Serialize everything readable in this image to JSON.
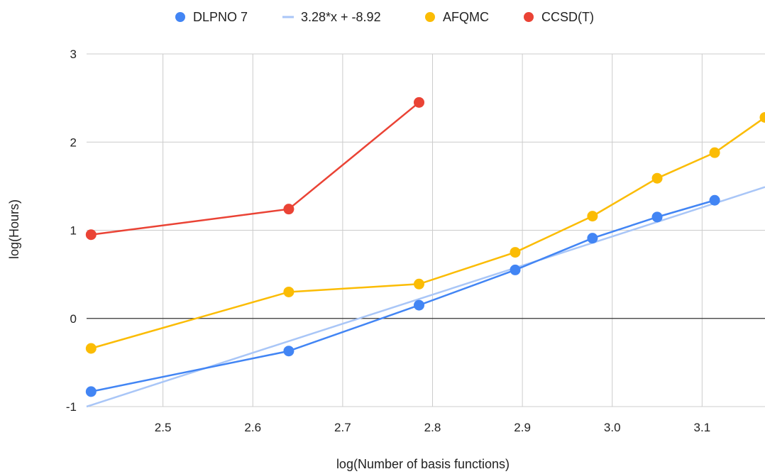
{
  "chart_data": {
    "type": "line",
    "title": "",
    "xlabel": "log(Number of basis functions)",
    "ylabel": "log(Hours)",
    "xlim": [
      2.415,
      3.17
    ],
    "ylim": [
      -1,
      3
    ],
    "xticks": [
      "2.5",
      "2.6",
      "2.7",
      "2.8",
      "2.9",
      "3.0",
      "3.1"
    ],
    "yticks": [
      "-1",
      "0",
      "1",
      "2",
      "3"
    ],
    "grid": true,
    "legend_position": "top",
    "series": [
      {
        "name": "DLPNO 7",
        "color": "#4285f4",
        "markers": true,
        "points": [
          [
            2.42,
            -0.83
          ],
          [
            2.64,
            -0.37
          ],
          [
            2.785,
            0.15
          ],
          [
            2.892,
            0.55
          ],
          [
            2.978,
            0.91
          ],
          [
            3.05,
            1.15
          ],
          [
            3.114,
            1.34
          ]
        ]
      },
      {
        "name": "3.28*x + -8.92",
        "color": "#a9c6f7",
        "markers": false,
        "trendline": {
          "slope": 3.28,
          "intercept": -8.92
        },
        "points": [
          [
            2.415,
            -1.0
          ],
          [
            3.17,
            1.49
          ]
        ]
      },
      {
        "name": "AFQMC",
        "color": "#fbbc04",
        "markers": true,
        "points": [
          [
            2.42,
            -0.34
          ],
          [
            2.64,
            0.3
          ],
          [
            2.785,
            0.39
          ],
          [
            2.892,
            0.75
          ],
          [
            2.978,
            1.16
          ],
          [
            3.05,
            1.59
          ],
          [
            3.114,
            1.88
          ],
          [
            3.17,
            2.28
          ]
        ]
      },
      {
        "name": "CCSD(T)",
        "color": "#ea4335",
        "markers": true,
        "points": [
          [
            2.42,
            0.95
          ],
          [
            2.64,
            1.24
          ],
          [
            2.785,
            2.45
          ]
        ]
      }
    ]
  }
}
